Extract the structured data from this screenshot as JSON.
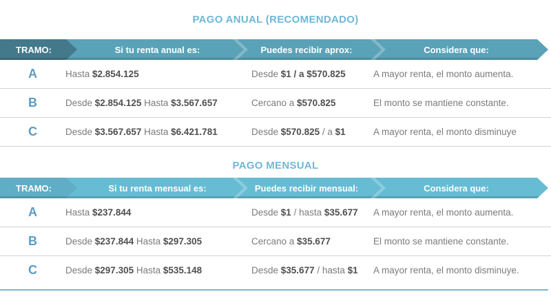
{
  "accent_colors": {
    "section_title": "#6FB7D6",
    "header1_main": "#5AA2B7",
    "header1_first_segment": "#44798C",
    "header2_main": "#66BCD3",
    "header2_first_segment": "#5FAEC5",
    "tramo_letter": "#5B9CC4",
    "bold_text": "#4f4f4f",
    "regular_text": "#7b7b7b",
    "row_separator": "#d2d2d2",
    "bottom_line": "#7BB8C6"
  },
  "tables": [
    {
      "title": "PAGO ANUAL (RECOMENDADO)",
      "header": [
        "TRAMO:",
        "Si tu renta anual es:",
        "Puedes recibir aprox:",
        "Considera que:"
      ],
      "rows": [
        {
          "tramo": "A",
          "renta": [
            {
              "text": "Hasta ",
              "bold": false
            },
            {
              "text": "$2.854.125",
              "bold": true
            }
          ],
          "recibe": [
            {
              "text": "Desde ",
              "bold": false
            },
            {
              "text": "$1 / a $570.825",
              "bold": true
            }
          ],
          "considera": "A mayor renta, el monto aumenta."
        },
        {
          "tramo": "B",
          "renta": [
            {
              "text": "Desde ",
              "bold": false
            },
            {
              "text": "$2.854.125",
              "bold": true
            },
            {
              "text": " Hasta ",
              "bold": false
            },
            {
              "text": "$3.567.657",
              "bold": true
            }
          ],
          "recibe": [
            {
              "text": "Cercano a ",
              "bold": false
            },
            {
              "text": "$570.825",
              "bold": true
            }
          ],
          "considera": "El monto se mantiene constante."
        },
        {
          "tramo": "C",
          "renta": [
            {
              "text": "Desde ",
              "bold": false
            },
            {
              "text": "$3.567.657",
              "bold": true
            },
            {
              "text": " Hasta ",
              "bold": false
            },
            {
              "text": "$6.421.781",
              "bold": true
            }
          ],
          "recibe": [
            {
              "text": "Desde ",
              "bold": false
            },
            {
              "text": "$570.825",
              "bold": true
            },
            {
              "text": " / a ",
              "bold": false
            },
            {
              "text": "$1",
              "bold": true
            }
          ],
          "considera": "A mayor renta, el monto disminuye"
        }
      ]
    },
    {
      "title": "PAGO MENSUAL",
      "header": [
        "TRAMO:",
        "Si tu renta mensual es:",
        "Puedes recibir mensual:",
        "Considera que:"
      ],
      "rows": [
        {
          "tramo": "A",
          "renta": [
            {
              "text": "Hasta ",
              "bold": false
            },
            {
              "text": "$237.844",
              "bold": true
            }
          ],
          "recibe": [
            {
              "text": "Desde ",
              "bold": false
            },
            {
              "text": "$1",
              "bold": true
            },
            {
              "text": " / hasta ",
              "bold": false
            },
            {
              "text": "$35.677",
              "bold": true
            }
          ],
          "considera": "A mayor renta, el monto aumenta."
        },
        {
          "tramo": "B",
          "renta": [
            {
              "text": "Desde ",
              "bold": false
            },
            {
              "text": "$237.844",
              "bold": true
            },
            {
              "text": " Hasta ",
              "bold": false
            },
            {
              "text": "$297.305",
              "bold": true
            }
          ],
          "recibe": [
            {
              "text": "Cercano a ",
              "bold": false
            },
            {
              "text": "$35.677",
              "bold": true
            }
          ],
          "considera": "El monto se mantiene constante."
        },
        {
          "tramo": "C",
          "renta": [
            {
              "text": "Desde ",
              "bold": false
            },
            {
              "text": "$297.305",
              "bold": true
            },
            {
              "text": " Hasta ",
              "bold": false
            },
            {
              "text": "$535.148",
              "bold": true
            }
          ],
          "recibe": [
            {
              "text": "Desde ",
              "bold": false
            },
            {
              "text": "$35.677",
              "bold": true
            },
            {
              "text": " / hasta ",
              "bold": false
            },
            {
              "text": "$1",
              "bold": true
            }
          ],
          "considera": "A mayor renta, el monto disminuye."
        }
      ]
    }
  ]
}
